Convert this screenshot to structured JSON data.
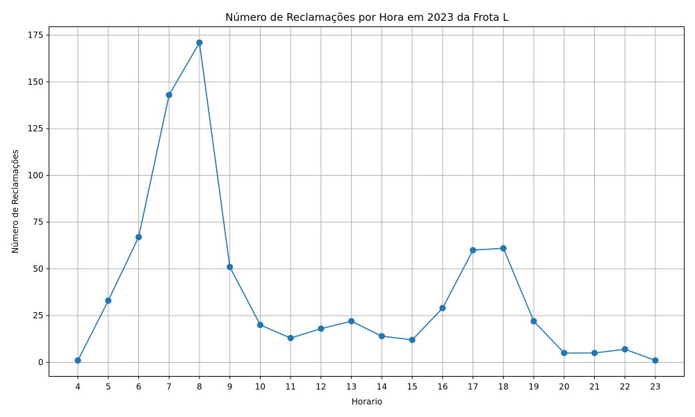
{
  "chart_data": {
    "type": "line",
    "title": "Número de Reclamações por Hora em 2023 da Frota L",
    "xlabel": "Horario",
    "ylabel": "Número de Reclamações",
    "x": [
      4,
      5,
      6,
      7,
      8,
      9,
      10,
      11,
      12,
      13,
      14,
      15,
      16,
      17,
      18,
      19,
      20,
      21,
      22,
      23
    ],
    "series": [
      {
        "values": [
          1,
          33,
          67,
          143,
          171,
          51,
          20,
          13,
          18,
          22,
          14,
          12,
          29,
          60,
          61,
          22,
          5,
          5,
          7,
          1
        ],
        "color": "#1f77b4",
        "marker": "circle"
      }
    ],
    "x_ticks": [
      "4",
      "5",
      "6",
      "7",
      "8",
      "9",
      "10",
      "11",
      "12",
      "13",
      "14",
      "15",
      "16",
      "17",
      "18",
      "19",
      "20",
      "21",
      "22",
      "23"
    ],
    "y_ticks": [
      0,
      25,
      50,
      75,
      100,
      125,
      150,
      175
    ],
    "y_tick_labels": [
      "0",
      "25",
      "50",
      "75",
      "100",
      "125",
      "150",
      "175"
    ],
    "xlim": [
      3.05,
      23.95
    ],
    "ylim": [
      -7.5,
      179.5
    ],
    "grid": true,
    "legend": "none"
  }
}
